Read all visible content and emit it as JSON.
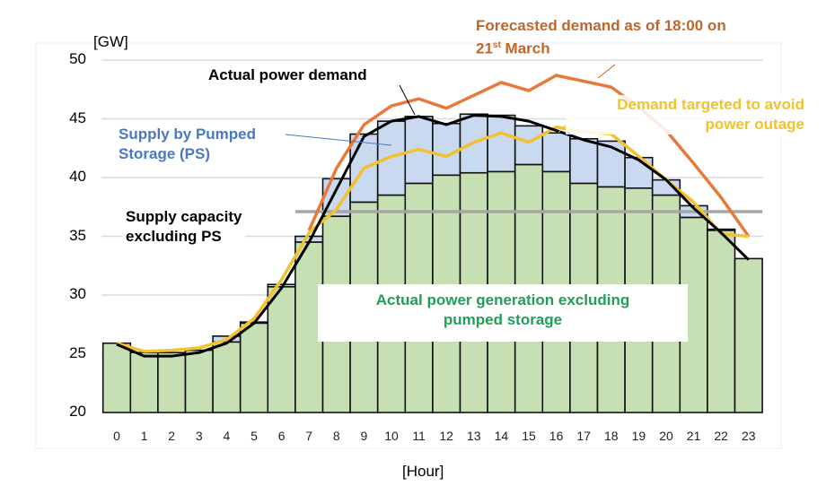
{
  "chart_data": {
    "type": "bar",
    "title": "",
    "xlabel": "[Hour]",
    "ylabel": "[GW]",
    "ylim": [
      20,
      50
    ],
    "yticks": [
      20,
      25,
      30,
      35,
      40,
      45,
      50
    ],
    "grid": true,
    "categories": [
      "0",
      "1",
      "2",
      "3",
      "4",
      "5",
      "6",
      "7",
      "8",
      "9",
      "10",
      "11",
      "12",
      "13",
      "14",
      "15",
      "16",
      "17",
      "18",
      "19",
      "20",
      "21",
      "22",
      "23"
    ],
    "series": [
      {
        "name": "Actual power generation excluding pumped storage",
        "kind": "bar",
        "color": "#c6e0b4",
        "values": [
          25.9,
          25.1,
          25.1,
          25.3,
          26.0,
          27.6,
          30.7,
          34.5,
          36.7,
          37.9,
          38.5,
          39.5,
          40.2,
          40.4,
          40.5,
          41.1,
          40.5,
          39.5,
          39.2,
          39.1,
          38.5,
          36.6,
          35.5,
          33.1
        ]
      },
      {
        "name": "Supply by Pumped Storage (PS)",
        "kind": "stacked-bar-top",
        "color": "#c9daf0",
        "totals": [
          25.9,
          25.1,
          25.1,
          25.3,
          26.5,
          27.7,
          30.9,
          35.0,
          39.9,
          43.7,
          44.8,
          45.2,
          44.6,
          45.4,
          45.3,
          44.4,
          43.8,
          43.3,
          43.1,
          41.7,
          39.8,
          37.6,
          35.6,
          33.1
        ]
      },
      {
        "name": "Actual power demand",
        "kind": "line",
        "color": "#000000",
        "values": [
          25.8,
          24.8,
          24.8,
          25.1,
          25.9,
          27.6,
          30.6,
          34.5,
          39.0,
          43.5,
          44.8,
          45.2,
          44.5,
          45.3,
          45.2,
          44.8,
          44.0,
          43.2,
          42.6,
          41.5,
          39.8,
          37.4,
          35.3,
          33.0
        ]
      },
      {
        "name": "Forecasted demand as of 18:00 on 21st March",
        "kind": "line",
        "color": "#e8793a",
        "values": [
          null,
          null,
          null,
          null,
          null,
          null,
          null,
          35.5,
          40.8,
          44.5,
          46.1,
          46.7,
          45.9,
          47.0,
          48.1,
          47.4,
          48.7,
          48.2,
          47.7,
          46.0,
          44.0,
          41.2,
          38.3,
          35.0
        ]
      },
      {
        "name": "Demand targeted to avoid power outage",
        "kind": "line",
        "color": "#f2c12e",
        "values": [
          25.9,
          25.2,
          25.3,
          25.5,
          26.2,
          28.0,
          31.3,
          35.3,
          37.3,
          40.8,
          41.8,
          42.4,
          41.8,
          43.0,
          43.8,
          43.0,
          44.3,
          43.9,
          43.7,
          41.8,
          39.8,
          37.9,
          35.2,
          35.0
        ]
      },
      {
        "name": "Supply capacity excluding PS",
        "kind": "hline",
        "color": "#a6a6a6",
        "value": 37.1,
        "x_range": [
          "6.5",
          "23.5"
        ]
      }
    ],
    "annotations": {
      "forecast_line1": "Forecasted demand as of 18:00 on",
      "forecast_line2a": "21",
      "forecast_sup": "st",
      "forecast_line2b": " March",
      "actual_demand": "Actual power demand",
      "target_line1": "Demand targeted to avoid",
      "target_line2": "power outage",
      "ps_line1": "Supply by Pumped",
      "ps_line2": "Storage (PS)",
      "cap_line1": "Supply capacity",
      "cap_line2": "excluding PS",
      "gen_line1": "Actual power generation excluding",
      "gen_line2": "pumped storage"
    }
  }
}
